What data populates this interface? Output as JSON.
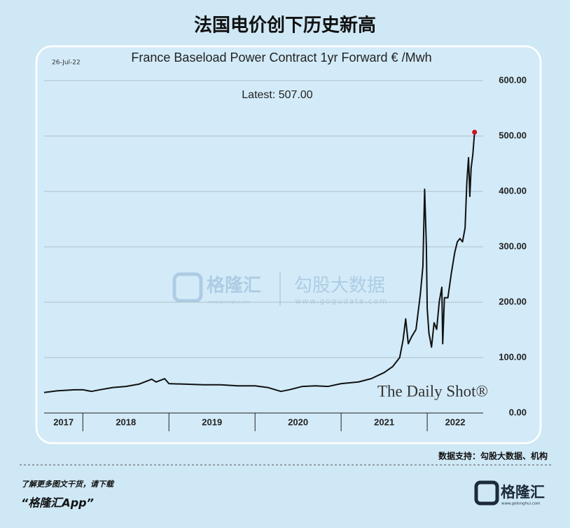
{
  "header": {
    "title": "法国电价创下历史新高"
  },
  "chart_data": {
    "type": "line",
    "title": "France Baseload Power Contract 1yr Forward € /Mwh",
    "date": "26-Jul-22",
    "annotation": "Latest:  507.00",
    "source": "The Daily Shot®",
    "x": [
      2017.55,
      2017.7,
      2017.9,
      2018.0,
      2018.1,
      2018.2,
      2018.35,
      2018.5,
      2018.65,
      2018.75,
      2018.8,
      2018.85,
      2018.95,
      2019.0,
      2019.2,
      2019.4,
      2019.6,
      2019.8,
      2020.0,
      2020.15,
      2020.3,
      2020.4,
      2020.55,
      2020.7,
      2020.85,
      2021.0,
      2021.2,
      2021.35,
      2021.5,
      2021.6,
      2021.68,
      2021.72,
      2021.75,
      2021.78,
      2021.82,
      2021.87,
      2021.92,
      2021.95,
      2021.97,
      2021.99,
      2022.0,
      2022.02,
      2022.05,
      2022.08,
      2022.11,
      2022.14,
      2022.17,
      2022.18,
      2022.2,
      2022.24,
      2022.28,
      2022.32,
      2022.35,
      2022.38,
      2022.41,
      2022.44,
      2022.46,
      2022.48,
      2022.495,
      2022.51,
      2022.53,
      2022.55
    ],
    "series": [
      {
        "name": "France Baseload Power Contract 1yr Forward",
        "color": "#111111",
        "values": [
          37,
          40,
          42,
          42,
          39,
          42,
          46,
          48,
          52,
          58,
          61,
          56,
          62,
          53,
          52,
          51,
          51,
          49,
          49,
          46,
          39,
          42,
          48,
          49,
          48,
          53,
          56,
          62,
          73,
          84,
          100,
          132,
          170,
          125,
          138,
          151,
          214,
          265,
          404,
          303,
          189,
          144,
          119,
          163,
          151,
          201,
          227,
          125,
          208,
          208,
          252,
          290,
          309,
          315,
          309,
          334,
          416,
          461,
          391,
          442,
          467,
          507
        ]
      }
    ],
    "xlim": [
      2017.55,
      2022.65
    ],
    "xticks": [
      2017,
      2018,
      2019,
      2020,
      2021,
      2022
    ],
    "ylim": [
      0,
      600
    ],
    "yticks": [
      {
        "value": 0,
        "label": "0.00"
      },
      {
        "value": 100,
        "label": "100.00"
      },
      {
        "value": 200,
        "label": "200.00"
      },
      {
        "value": 300,
        "label": "300.00"
      },
      {
        "value": 400,
        "label": "400.00"
      },
      {
        "value": 500,
        "label": "500.00"
      },
      {
        "value": 600,
        "label": "600.00"
      }
    ],
    "grid": true,
    "latest_color": "#d0101e"
  },
  "watermark": {
    "brand": "格隆汇",
    "partner": "勾股大数据",
    "partner_url": "www.gogudata.com",
    "brand_url": "www.gelonghui.com"
  },
  "footer": {
    "source": "数据支持：勾股大数据、机构",
    "prompt": "了解更多图文干货，请下载",
    "app": "“格隆汇App”",
    "brand": "格隆汇",
    "brand_url": "www.gelonghui.com"
  }
}
